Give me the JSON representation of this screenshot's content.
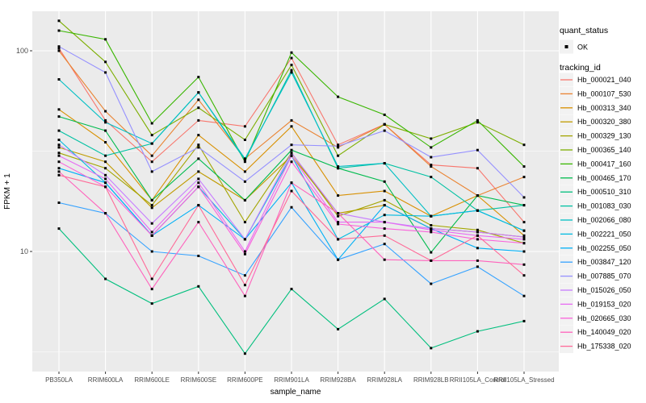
{
  "chart_data": {
    "type": "line",
    "title": "",
    "xlabel": "sample_name",
    "ylabel": "FPKM + 1",
    "y_scale": "log10",
    "ylim": [
      2.5,
      158
    ],
    "y_ticks": [
      100,
      10
    ],
    "y_minor": [
      31.623,
      3.162
    ],
    "grid": true,
    "legend_position": "right",
    "panel_bg": "#EBEBEB",
    "grid_color": "#FFFFFF",
    "tick_color": "#333333",
    "tick_label_color": "#4D4D4D",
    "point_color": "#000000",
    "categories": [
      "PB350LA",
      "RRIM600LA",
      "RRIM600LE",
      "RRIM600SE",
      "RRIM600PE",
      "RRIM901LA",
      "RRIM928BA",
      "RRIM928LA",
      "RRIM928LB",
      "RRII105LA_Control",
      "RRII105LA_Stressed"
    ],
    "series": [
      {
        "name": "Hb_000021_040",
        "color": "#F8766D",
        "values": [
          103,
          45,
          28,
          45,
          42,
          92,
          34,
          43,
          27,
          26,
          14
        ]
      },
      {
        "name": "Hb_000107_530",
        "color": "#EA8331",
        "values": [
          100,
          50,
          30,
          57,
          29,
          45,
          33,
          43,
          26.5,
          19,
          23.5
        ]
      },
      {
        "name": "Hb_000313_340",
        "color": "#D89000",
        "values": [
          51,
          35,
          18,
          38,
          25,
          42,
          19,
          20,
          15,
          19,
          12
        ]
      },
      {
        "name": "Hb_000320_380",
        "color": "#C09B00",
        "values": [
          33,
          28,
          16.5,
          25,
          18,
          30,
          15.5,
          17,
          13,
          12.5,
          11.8
        ]
      },
      {
        "name": "Hb_000329_130",
        "color": "#A3A500",
        "values": [
          31,
          26,
          17,
          34,
          14,
          31,
          15,
          18,
          13.5,
          12.8,
          11
        ]
      },
      {
        "name": "Hb_000365_140",
        "color": "#7CAE00",
        "values": [
          141,
          88,
          38,
          52,
          36,
          85,
          30,
          43,
          36.5,
          44,
          34
        ]
      },
      {
        "name": "Hb_000417_160",
        "color": "#39B600",
        "values": [
          126,
          114,
          43.5,
          74,
          28,
          98,
          59,
          48,
          33,
          45,
          26.5
        ]
      },
      {
        "name": "Hb_000465_170",
        "color": "#00BB4E",
        "values": [
          47,
          40,
          18,
          29,
          18,
          32,
          26,
          22.3,
          9.9,
          19,
          17
        ]
      },
      {
        "name": "Hb_000510_310",
        "color": "#00BF7D",
        "values": [
          13,
          7.3,
          5.5,
          6.7,
          3.1,
          6.5,
          4.1,
          5.8,
          3.3,
          4,
          4.5
        ]
      },
      {
        "name": "Hb_001083_030",
        "color": "#00C1A3",
        "values": [
          40,
          30,
          34.5,
          62,
          28.5,
          80,
          26,
          27.5,
          23.5,
          16,
          17
        ]
      },
      {
        "name": "Hb_002066_080",
        "color": "#00BFC4",
        "values": [
          72,
          44,
          34.5,
          62,
          29,
          78,
          26.5,
          27.5,
          15,
          16,
          12.7
        ]
      },
      {
        "name": "Hb_002221_050",
        "color": "#00BAE0",
        "values": [
          36,
          22,
          12,
          21,
          11.5,
          30,
          11.5,
          15.2,
          15,
          16,
          12.7
        ]
      },
      {
        "name": "Hb_002255_050",
        "color": "#00B0F6",
        "values": [
          26,
          22,
          12,
          17,
          11.5,
          22,
          9.1,
          17,
          13,
          10.4,
          10
        ]
      },
      {
        "name": "Hb_003847_120",
        "color": "#35A2FF",
        "values": [
          17.5,
          15.5,
          10,
          9.5,
          7.6,
          16.6,
          9.1,
          10.9,
          6.9,
          8.4,
          6
        ]
      },
      {
        "name": "Hb_007885_070",
        "color": "#9590FF",
        "values": [
          105,
          78,
          25,
          33,
          22.3,
          34,
          33.5,
          40,
          29.5,
          32,
          18.6
        ]
      },
      {
        "name": "Hb_015026_050",
        "color": "#C77CFF",
        "values": [
          34,
          24,
          13.8,
          23,
          11.5,
          31,
          15.5,
          14,
          13,
          12.5,
          11.8
        ]
      },
      {
        "name": "Hb_019153_020",
        "color": "#E76BF3",
        "values": [
          30,
          23,
          12.5,
          22,
          10,
          30,
          14,
          14,
          12.8,
          12,
          11.5
        ]
      },
      {
        "name": "Hb_020665_030",
        "color": "#FA62DB",
        "values": [
          28,
          21,
          12,
          21,
          9.7,
          28,
          13.7,
          13,
          12.5,
          11.5,
          11
        ]
      },
      {
        "name": "Hb_140049_020",
        "color": "#FF62BC",
        "values": [
          25,
          15.5,
          6.5,
          14,
          6,
          22,
          15.5,
          9.1,
          9,
          9,
          8.6
        ]
      },
      {
        "name": "Hb_175338_020",
        "color": "#FF6A98",
        "values": [
          24,
          21,
          7.3,
          17,
          6.8,
          20,
          11.5,
          12,
          9,
          12,
          7.6
        ]
      }
    ]
  },
  "legend": {
    "quant_status": {
      "title": "quant_status",
      "items": [
        {
          "label": "OK"
        }
      ]
    },
    "tracking": {
      "title": "tracking_id"
    },
    "key_bg": "#F2F2F2"
  }
}
